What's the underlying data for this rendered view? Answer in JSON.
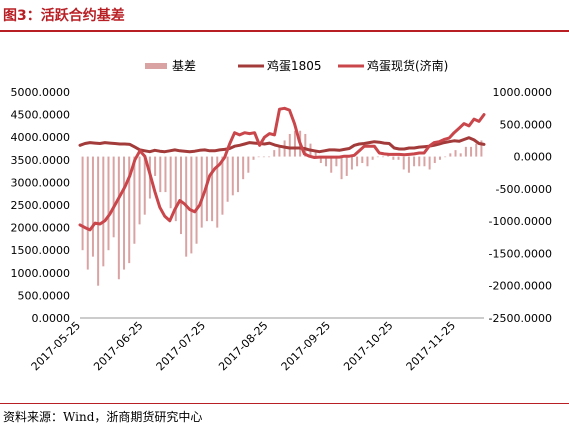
{
  "figure": {
    "title": "图3：活跃合约基差",
    "source": "资料来源：Wind，浙商期货研究中心"
  },
  "colors": {
    "title": "#b81f25",
    "basis": "#d9a3a3",
    "futures": "#a33b3b",
    "spot": "#c9464b"
  },
  "chart_data": {
    "type": "bar",
    "legend": [
      "基差",
      "鸡蛋1805",
      "鸡蛋现货(济南)"
    ],
    "legend_position": "top-center",
    "x_tick_labels": [
      "2017-05-25",
      "2017-06-25",
      "2017-07-25",
      "2017-08-25",
      "2017-09-25",
      "2017-10-25",
      "2017-11-25"
    ],
    "left_axis": {
      "min": 0,
      "max": 5000,
      "step": 500,
      "tick_labels": [
        "0.0000",
        "500.0000",
        "1000.0000",
        "1500.0000",
        "2000.0000",
        "2500.0000",
        "3000.0000",
        "3500.0000",
        "4000.0000",
        "4500.0000",
        "5000.0000"
      ]
    },
    "right_axis": {
      "min": -2500,
      "max": 1000,
      "step": 500,
      "tick_labels": [
        "-2500.0000",
        "-2000.0000",
        "-1500.0000",
        "-1000.0000",
        "-500.0000",
        "0.0000",
        "500.0000",
        "1000.0000"
      ]
    },
    "grid": false,
    "series": [
      {
        "name": "基差",
        "kind": "bar",
        "axis": "right",
        "values": [
          -1450,
          -1750,
          -1550,
          -2000,
          -1700,
          -1450,
          -1250,
          -1900,
          -1750,
          -1650,
          -1350,
          -1050,
          -900,
          -650,
          -300,
          -550,
          -550,
          -800,
          -1000,
          -1200,
          -1550,
          -1500,
          -1350,
          -1100,
          -1000,
          -1000,
          -1100,
          -900,
          -700,
          -600,
          -550,
          -350,
          -250,
          -50,
          0,
          0,
          0,
          100,
          150,
          250,
          350,
          400,
          400,
          350,
          200,
          100,
          -100,
          -150,
          -250,
          -150,
          -350,
          -300,
          -200,
          -150,
          -100,
          -150,
          -50,
          0,
          0,
          50,
          -50,
          -50,
          -200,
          -250,
          -150,
          -150,
          -150,
          -200,
          -100,
          -50,
          0,
          50,
          100,
          50,
          150,
          150,
          200,
          250
        ]
      },
      {
        "name": "鸡蛋1805",
        "kind": "line",
        "axis": "left",
        "values": [
          3820,
          3860,
          3880,
          3870,
          3860,
          3880,
          3870,
          3860,
          3850,
          3850,
          3840,
          3780,
          3720,
          3700,
          3680,
          3710,
          3690,
          3680,
          3700,
          3720,
          3700,
          3690,
          3680,
          3690,
          3710,
          3720,
          3700,
          3700,
          3720,
          3730,
          3750,
          3800,
          3820,
          3850,
          3880,
          3870,
          3860,
          3850,
          3870,
          3830,
          3800,
          3780,
          3760,
          3760,
          3760,
          3750,
          3720,
          3700,
          3680,
          3700,
          3720,
          3720,
          3710,
          3730,
          3750,
          3820,
          3850,
          3860,
          3880,
          3900,
          3890,
          3870,
          3860,
          3760,
          3740,
          3740,
          3760,
          3760,
          3780,
          3790,
          3800,
          3820,
          3850,
          3880,
          3900,
          3920,
          3910,
          3950,
          3990,
          3940,
          3860,
          3840
        ]
      },
      {
        "name": "鸡蛋现货(济南)",
        "kind": "line",
        "axis": "left",
        "values": [
          2060,
          2000,
          1950,
          2100,
          2080,
          2150,
          2300,
          2500,
          2700,
          2900,
          3150,
          3500,
          3700,
          3580,
          3200,
          2800,
          2450,
          2250,
          2150,
          2400,
          2600,
          2520,
          2400,
          2350,
          2500,
          2800,
          3150,
          3300,
          3400,
          3550,
          3850,
          4100,
          4050,
          4100,
          4080,
          4100,
          3820,
          4000,
          4080,
          4050,
          4620,
          4640,
          4600,
          4300,
          3900,
          3630,
          3580,
          3550,
          3560,
          3560,
          3560,
          3560,
          3560,
          3580,
          3580,
          3600,
          3700,
          3800,
          3800,
          3800,
          3650,
          3630,
          3620,
          3620,
          3620,
          3610,
          3620,
          3630,
          3650,
          3650,
          3800,
          3880,
          3900,
          3950,
          3980,
          4100,
          4200,
          4300,
          4250,
          4400,
          4350,
          4500
        ]
      }
    ]
  }
}
